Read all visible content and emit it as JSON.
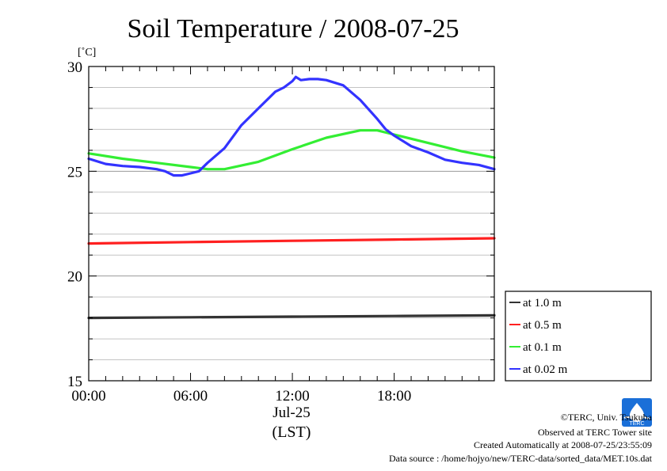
{
  "chart_data": {
    "type": "line",
    "title": "Soil Temperature / 2008-07-25",
    "ylabel": "[˚C]",
    "xlabel_date": "Jul-25",
    "xlabel_unit": "(LST)",
    "xlim": [
      0,
      23.9
    ],
    "ylim": [
      15,
      30
    ],
    "x_ticks": [
      {
        "value": 0,
        "label": "00:00"
      },
      {
        "value": 6,
        "label": "06:00"
      },
      {
        "value": 12,
        "label": "12:00"
      },
      {
        "value": 18,
        "label": "18:00"
      }
    ],
    "y_ticks": [
      {
        "value": 15,
        "label": "15"
      },
      {
        "value": 20,
        "label": "20"
      },
      {
        "value": 25,
        "label": "25"
      },
      {
        "value": 30,
        "label": "30"
      }
    ],
    "grid": true,
    "legend_position": "right",
    "series": [
      {
        "name": "at 1.0 m",
        "color": "#333333",
        "x": [
          0,
          6,
          12,
          18,
          23.9
        ],
        "y": [
          18.0,
          18.03,
          18.06,
          18.09,
          18.12
        ]
      },
      {
        "name": "at 0.5 m",
        "color": "#ff2020",
        "x": [
          0,
          6,
          12,
          18,
          23.9
        ],
        "y": [
          21.55,
          21.62,
          21.68,
          21.74,
          21.8
        ]
      },
      {
        "name": "at 0.1 m",
        "color": "#33ee33",
        "x": [
          0,
          2,
          4,
          6,
          7,
          8,
          10,
          12,
          14,
          16,
          17,
          18,
          20,
          22,
          23.9
        ],
        "y": [
          25.85,
          25.6,
          25.4,
          25.2,
          25.1,
          25.1,
          25.45,
          26.05,
          26.6,
          26.95,
          26.95,
          26.75,
          26.35,
          25.95,
          25.65
        ]
      },
      {
        "name": "at 0.02 m",
        "color": "#3333ff",
        "x": [
          0,
          1,
          2,
          3,
          4,
          4.5,
          5,
          5.5,
          6,
          6.5,
          7,
          8,
          9,
          10,
          11,
          11.5,
          12,
          12.2,
          12.5,
          13,
          13.5,
          14,
          15,
          16,
          17,
          17.5,
          18,
          19,
          20,
          21,
          22,
          23,
          23.9
        ],
        "y": [
          25.6,
          25.35,
          25.25,
          25.2,
          25.1,
          25.0,
          24.8,
          24.8,
          24.9,
          25.0,
          25.4,
          26.1,
          27.2,
          28.0,
          28.8,
          29.0,
          29.3,
          29.5,
          29.35,
          29.4,
          29.4,
          29.35,
          29.1,
          28.4,
          27.5,
          27.0,
          26.7,
          26.2,
          25.9,
          25.55,
          25.4,
          25.3,
          25.1
        ]
      }
    ]
  },
  "credits": {
    "copyright": "©TERC, Univ. Tsukuba",
    "observed": "Observed at TERC Tower site",
    "created": "Created Automatically at 2008-07-25/23:55:09",
    "source": "Data source : /home/hojyo/new/TERC-data/sorted_data/MET.10s.dat"
  },
  "logo": {
    "text": "TERC",
    "color": "#1a6fd8"
  }
}
